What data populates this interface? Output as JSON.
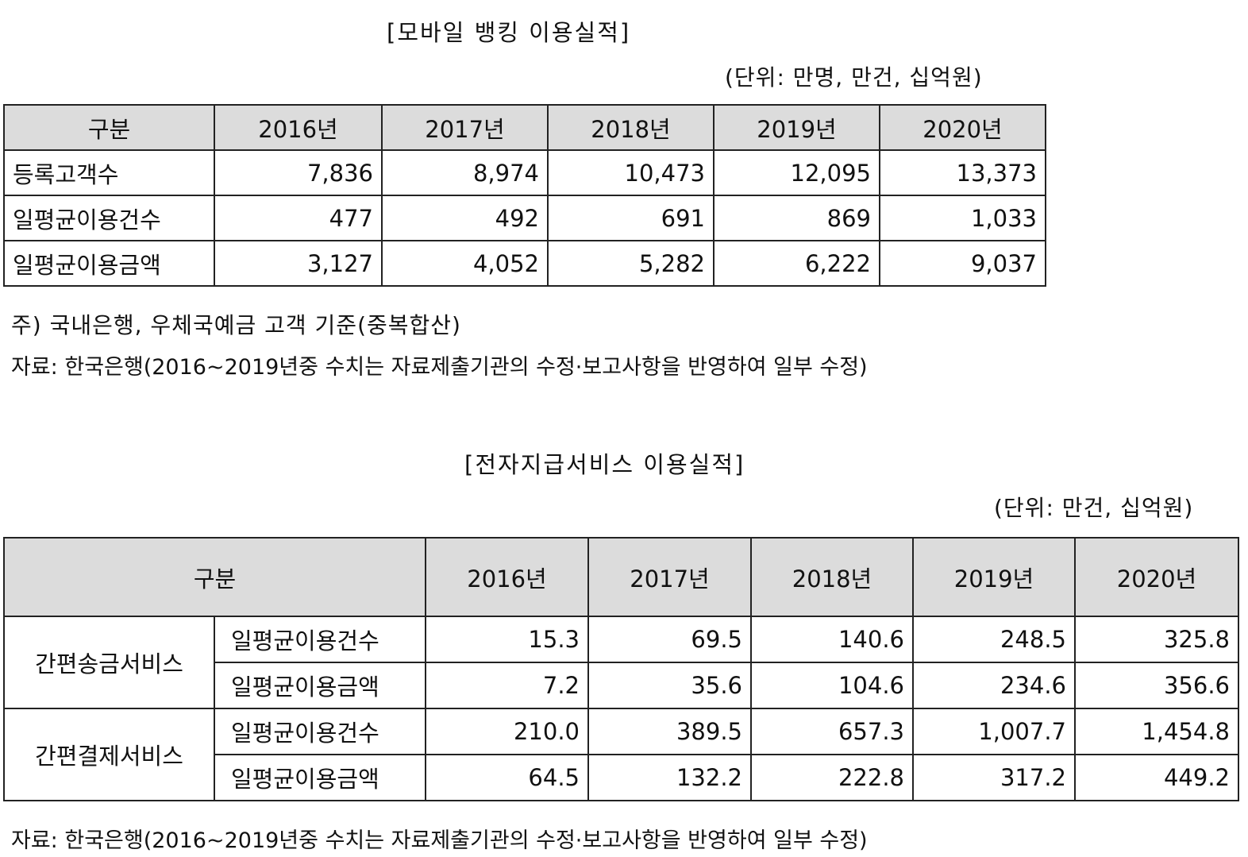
{
  "mobile": {
    "title": "[모바일 뱅킹 이용실적]",
    "unit": "(단위: 만명, 만건, 십억원)",
    "header": [
      "구분",
      "2016년",
      "2017년",
      "2018년",
      "2019년",
      "2020년"
    ],
    "rows": [
      {
        "label": "등록고객수",
        "values": [
          "7,836",
          "8,974",
          "10,473",
          "12,095",
          "13,373"
        ]
      },
      {
        "label": "일평균이용건수",
        "values": [
          "477",
          "492",
          "691",
          "869",
          "1,033"
        ]
      },
      {
        "label": "일평균이용금액",
        "values": [
          "3,127",
          "4,052",
          "5,282",
          "6,222",
          "9,037"
        ]
      }
    ],
    "note": "주) 국내은행, 우체국예금 고객 기준(중복합산)",
    "source": "자료: 한국은행(2016~2019년중 수치는 자료제출기관의 수정·보고사항을 반영하여 일부 수정)"
  },
  "epay": {
    "title": "[전자지급서비스 이용실적]",
    "unit": "(단위: 만건, 십억원)",
    "header": [
      "구분",
      "2016년",
      "2017년",
      "2018년",
      "2019년",
      "2020년"
    ],
    "groups": [
      {
        "name": "간편송금서비스",
        "rows": [
          {
            "label": "일평균이용건수",
            "values": [
              "15.3",
              "69.5",
              "140.6",
              "248.5",
              "325.8"
            ]
          },
          {
            "label": "일평균이용금액",
            "values": [
              "7.2",
              "35.6",
              "104.6",
              "234.6",
              "356.6"
            ]
          }
        ]
      },
      {
        "name": "간편결제서비스",
        "rows": [
          {
            "label": "일평균이용건수",
            "values": [
              "210.0",
              "389.5",
              "657.3",
              "1,007.7",
              "1,454.8"
            ]
          },
          {
            "label": "일평균이용금액",
            "values": [
              "64.5",
              "132.2",
              "222.8",
              "317.2",
              "449.2"
            ]
          }
        ]
      }
    ],
    "source": "자료: 한국은행(2016~2019년중 수치는 자료제출기관의 수정·보고사항을 반영하여 일부 수정)"
  }
}
